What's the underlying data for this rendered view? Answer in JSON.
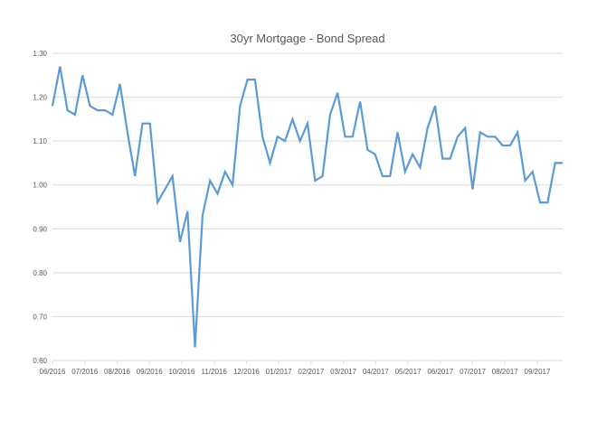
{
  "chart_data": {
    "type": "line",
    "title": "30yr Mortgage - Bond Spread",
    "xlabel": "",
    "ylabel": "",
    "ylim": [
      0.6,
      1.3
    ],
    "y_ticks": [
      "0.60",
      "0.70",
      "0.80",
      "0.90",
      "1.00",
      "1.10",
      "1.20",
      "1.30"
    ],
    "x_tick_labels": [
      "06/2016",
      "07/2016",
      "08/2016",
      "09/2016",
      "10/2016",
      "11/2016",
      "12/2016",
      "01/2017",
      "02/2017",
      "03/2017",
      "04/2017",
      "05/2017",
      "06/2017",
      "07/2017",
      "08/2017",
      "09/2017"
    ],
    "grid": true,
    "legend": "none",
    "series": [
      {
        "name": "30yr Mortgage - Bond Spread",
        "color": "#5b9bd5",
        "values": [
          1.18,
          1.27,
          1.17,
          1.16,
          1.25,
          1.18,
          1.17,
          1.17,
          1.16,
          1.23,
          1.12,
          1.02,
          1.14,
          1.14,
          0.96,
          0.99,
          1.02,
          0.87,
          0.94,
          0.63,
          0.93,
          1.01,
          0.98,
          1.03,
          1.0,
          1.18,
          1.24,
          1.24,
          1.11,
          1.05,
          1.11,
          1.1,
          1.15,
          1.1,
          1.14,
          1.01,
          1.02,
          1.16,
          1.21,
          1.11,
          1.11,
          1.19,
          1.08,
          1.07,
          1.02,
          1.02,
          1.12,
          1.03,
          1.07,
          1.04,
          1.13,
          1.18,
          1.06,
          1.06,
          1.11,
          1.13,
          0.99,
          1.12,
          1.11,
          1.11,
          1.09,
          1.09,
          1.12,
          1.01,
          1.03,
          0.96,
          0.96,
          1.05,
          1.05
        ]
      }
    ]
  }
}
